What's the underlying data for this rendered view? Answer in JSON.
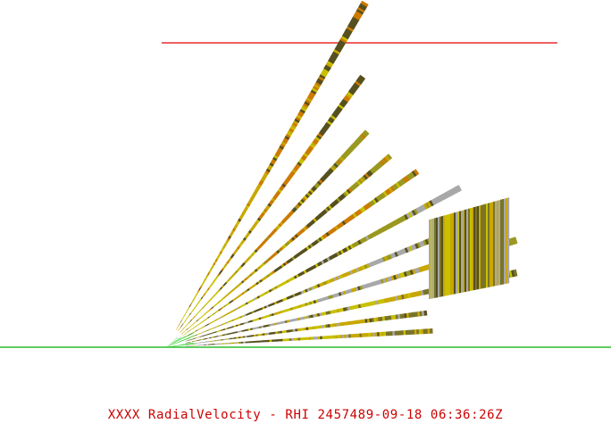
{
  "caption": "XXXX RadialVelocity - RHI 2457489-09-18 06:36:26Z",
  "colors": {
    "caption": "#cc0000",
    "top_line": "#e00000",
    "ground_line": "#00b000",
    "near_origin": "#22cc22",
    "palette": [
      "#56501f",
      "#a8a8a8",
      "#c8c000",
      "#c8a800",
      "#cc7a00",
      "#9a9820",
      "#7a7428"
    ]
  },
  "chart_data": {
    "type": "rhi",
    "product": "RadialVelocity",
    "scan_mode": "RHI",
    "sweeps": [
      {
        "elevation_deg": 60.0,
        "range_start": 0.05,
        "range_end": 1.0,
        "palette": [
          2,
          3,
          4,
          0
        ]
      },
      {
        "elevation_deg": 54.0,
        "range_start": 0.05,
        "range_end": 0.84,
        "palette": [
          2,
          3,
          4,
          0
        ]
      },
      {
        "elevation_deg": 47.0,
        "range_start": 0.05,
        "range_end": 0.74,
        "palette": [
          2,
          3,
          4,
          0,
          5
        ]
      },
      {
        "elevation_deg": 40.5,
        "range_start": 0.05,
        "range_end": 0.74,
        "palette": [
          2,
          3,
          4,
          0,
          5
        ]
      },
      {
        "elevation_deg": 35.0,
        "range_start": 0.05,
        "range_end": 0.77,
        "palette": [
          2,
          3,
          0,
          4,
          5
        ]
      },
      {
        "elevation_deg": 28.5,
        "range_start": 0.05,
        "range_end": 0.84,
        "palette": [
          3,
          2,
          0,
          5,
          1
        ]
      },
      {
        "elevation_deg": 22.0,
        "range_start": 0.05,
        "range_end": 0.86,
        "palette": [
          2,
          0,
          3,
          1,
          5
        ]
      },
      {
        "elevation_deg": 17.0,
        "range_start": 0.05,
        "range_end": 0.92,
        "palette": [
          0,
          2,
          1,
          3,
          5
        ]
      },
      {
        "elevation_deg": 12.0,
        "range_start": 0.05,
        "range_end": 0.9,
        "palette": [
          0,
          1,
          2,
          3,
          6
        ]
      },
      {
        "elevation_deg": 7.5,
        "range_start": 0.05,
        "range_end": 0.66,
        "palette": [
          1,
          0,
          2,
          3,
          6
        ]
      },
      {
        "elevation_deg": 3.5,
        "range_start": 0.05,
        "range_end": 0.67,
        "palette": [
          1,
          0,
          2,
          3,
          6
        ]
      }
    ],
    "block": {
      "palette": [
        0,
        2,
        1,
        3,
        6
      ]
    }
  }
}
